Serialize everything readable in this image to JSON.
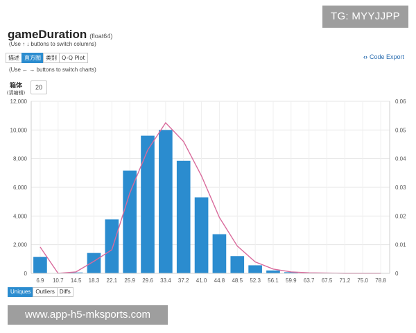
{
  "watermark_top": "TG: MYYJJPP",
  "watermark_bottom": "www.app-h5-mksports.com",
  "header": {
    "title": "gameDuration",
    "dtype": "(float64)",
    "hint_columns": "(Use ↑ ↓ buttons to switch columns)",
    "hint_charts": "(Use ← → buttons to switch charts)"
  },
  "tabs": [
    {
      "label": "描述",
      "active": false
    },
    {
      "label": "直方图",
      "active": true
    },
    {
      "label": "类别",
      "active": false
    },
    {
      "label": "Q-Q Plot",
      "active": false
    }
  ],
  "code_export": {
    "icon": "code-icon",
    "label": "Code Export"
  },
  "bins": {
    "label": "箱体",
    "sublabel": "(请编辑)",
    "value": "20"
  },
  "bottom_tabs": [
    {
      "label": "Uniques",
      "active": true
    },
    {
      "label": "Outliers",
      "active": false
    },
    {
      "label": "Diffs",
      "active": false
    }
  ],
  "chart_data": {
    "type": "bar",
    "title": "",
    "xlabel": "",
    "ylabel": "",
    "categories": [
      "6.9",
      "10.7",
      "14.5",
      "18.3",
      "22.1",
      "25.9",
      "29.6",
      "33.4",
      "37.2",
      "41.0",
      "44.8",
      "48.5",
      "52.3",
      "56.1",
      "59.9",
      "63.7",
      "67.5",
      "71.2",
      "75.0",
      "78.8"
    ],
    "values": [
      1150,
      10,
      60,
      1420,
      3760,
      7170,
      9600,
      10000,
      7850,
      5300,
      2730,
      1200,
      560,
      200,
      80,
      20,
      10,
      5,
      3,
      2
    ],
    "ylim": [
      0,
      12000
    ],
    "yticks": [
      "0",
      "2,000",
      "4,000",
      "6,000",
      "8,000",
      "10,000",
      "12,000"
    ],
    "y2lim": [
      0,
      0.06
    ],
    "y2ticks": [
      "0",
      "0.01",
      "0.02",
      "0.03",
      "0.04",
      "0.05",
      "0.06"
    ],
    "kde": {
      "x": [
        6.9,
        10.7,
        14.5,
        18.3,
        22.1,
        25.9,
        29.6,
        33.4,
        37.2,
        41.0,
        44.8,
        48.5,
        52.3,
        56.1,
        59.9,
        63.7,
        67.5,
        71.2,
        75.0,
        78.8
      ],
      "y": [
        0.0092,
        0.0,
        0.0005,
        0.0042,
        0.0082,
        0.028,
        0.043,
        0.0525,
        0.046,
        0.034,
        0.0195,
        0.0095,
        0.004,
        0.0015,
        0.0005,
        0.0002,
        0.0001,
        0.0,
        0.0,
        0.0
      ]
    },
    "grid": true,
    "colors": {
      "bar": "#2b8ccf",
      "kde": "#d96b9c",
      "grid": "#e6e6e6"
    }
  }
}
